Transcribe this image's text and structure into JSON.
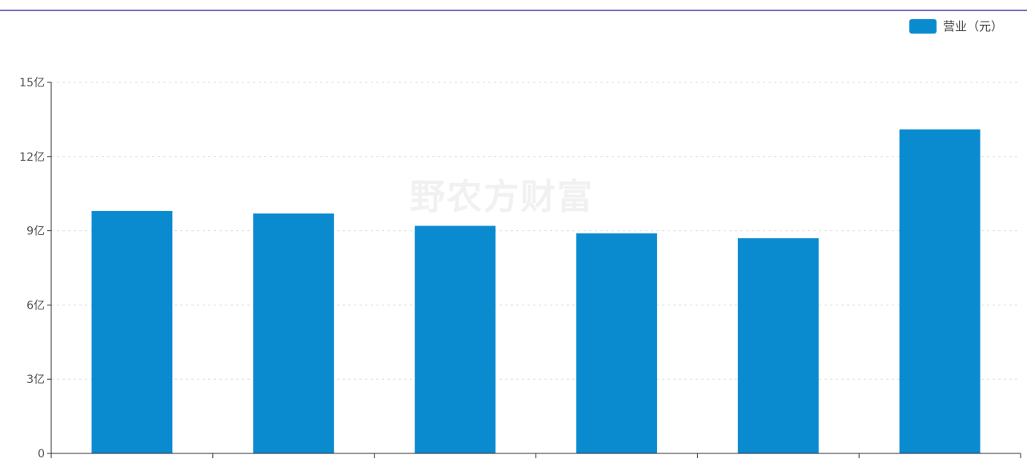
{
  "legend": {
    "label": "营业（元）",
    "color": "#0A8BD0"
  },
  "watermark": "野农方财富",
  "colors": {
    "bar": "#0A8BD0",
    "top_rule": "#7A6FBE",
    "axis": "#333333",
    "grid": "#dddddd"
  },
  "chart_data": {
    "type": "bar",
    "categories": [
      "",
      "",
      "",
      "",
      "",
      ""
    ],
    "series": [
      {
        "name": "营业（元）",
        "values": [
          9.8,
          9.7,
          9.2,
          8.9,
          8.7,
          13.1
        ]
      }
    ],
    "title": "",
    "xlabel": "",
    "ylabel": "",
    "ylim": [
      0,
      15
    ],
    "yticks": [
      0,
      3,
      6,
      9,
      12,
      15
    ],
    "ytick_labels": [
      "0",
      "3亿",
      "6亿",
      "9亿",
      "12亿",
      "15亿"
    ],
    "grid": true,
    "grid_axis": "y",
    "legend_position": "top-right"
  }
}
